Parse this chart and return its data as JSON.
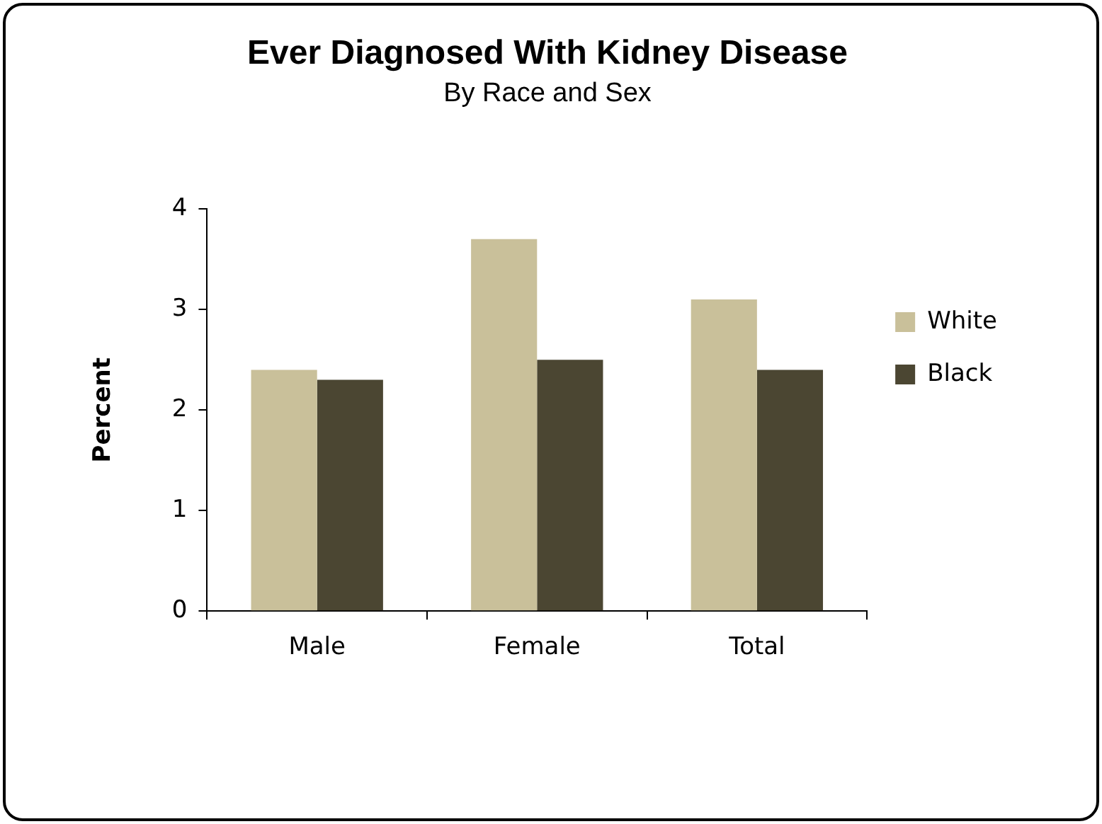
{
  "chart_data": {
    "type": "bar",
    "title": "Ever Diagnosed With Kidney Disease",
    "subtitle": "By Race and Sex",
    "ylabel": "Percent",
    "categories": [
      "Male",
      "Female",
      "Total"
    ],
    "series": [
      {
        "name": "White",
        "color": "#c9c09a",
        "values": [
          2.4,
          3.7,
          3.1
        ]
      },
      {
        "name": "Black",
        "color": "#4b4632",
        "values": [
          2.3,
          2.5,
          2.4
        ]
      }
    ],
    "ylim": [
      0,
      4
    ],
    "yticks": [
      0,
      1,
      2,
      3,
      4
    ],
    "grid": false,
    "legend": "right"
  }
}
